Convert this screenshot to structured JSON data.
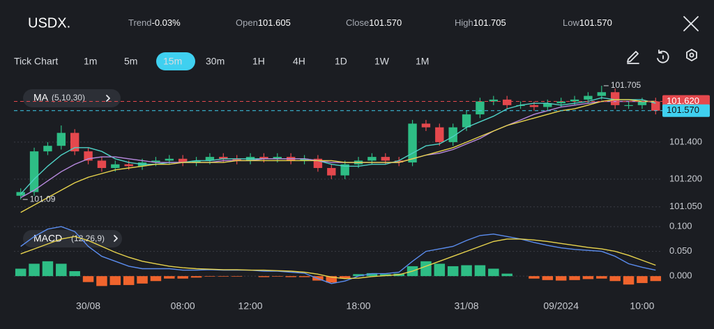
{
  "header": {
    "symbol": "USDX.",
    "stats": [
      {
        "label": "Trend",
        "value": "-0.03%"
      },
      {
        "label": "Open",
        "value": "101.605"
      },
      {
        "label": "Close",
        "value": "101.570"
      },
      {
        "label": "High",
        "value": "101.705"
      },
      {
        "label": "Low",
        "value": "101.570"
      }
    ]
  },
  "timeframes": [
    "Tick Chart",
    "1m",
    "5m",
    "15m",
    "30m",
    "1H",
    "4H",
    "1D",
    "1W",
    "1M"
  ],
  "active_timeframe": 3,
  "chart_data": [
    {
      "type": "candlestick",
      "indicator": "MA",
      "indicator_params": "(5,10,30)",
      "categories": [
        null,
        null,
        null,
        null,
        null,
        "30/08",
        null,
        null,
        null,
        null,
        null,
        null,
        "08:00",
        null,
        null,
        null,
        null,
        "12:00",
        null,
        null,
        null,
        null,
        null,
        null,
        null,
        "18:00",
        null,
        null,
        null,
        null,
        null,
        null,
        null,
        "31/08",
        null,
        null,
        null,
        null,
        null,
        null,
        "09/2024",
        null,
        null,
        null,
        null,
        null,
        "10:00",
        null
      ],
      "open": [
        101.11,
        101.13,
        101.35,
        101.38,
        101.45,
        101.35,
        101.3,
        101.26,
        101.28,
        101.27,
        101.29,
        101.3,
        101.31,
        101.29,
        101.3,
        101.32,
        101.31,
        101.3,
        101.32,
        101.31,
        101.32,
        101.3,
        101.31,
        101.26,
        101.22,
        101.28,
        101.3,
        101.32,
        101.3,
        101.29,
        101.5,
        101.48,
        101.4,
        101.48,
        101.55,
        101.62,
        101.63,
        101.6,
        101.6,
        101.59,
        101.61,
        101.62,
        101.63,
        101.65,
        101.67,
        101.6,
        101.6,
        101.62
      ],
      "high": [
        101.15,
        101.37,
        101.4,
        101.49,
        101.47,
        101.37,
        101.32,
        101.3,
        101.3,
        101.31,
        101.32,
        101.33,
        101.33,
        101.32,
        101.34,
        101.34,
        101.33,
        101.34,
        101.34,
        101.34,
        101.34,
        101.33,
        101.33,
        101.28,
        101.3,
        101.32,
        101.34,
        101.34,
        101.32,
        101.52,
        101.52,
        101.5,
        101.5,
        101.57,
        101.64,
        101.65,
        101.65,
        101.62,
        101.62,
        101.63,
        101.64,
        101.65,
        101.67,
        101.705,
        101.69,
        101.62,
        101.64,
        101.64
      ],
      "low": [
        101.09,
        101.11,
        101.33,
        101.36,
        101.33,
        101.28,
        101.24,
        101.24,
        101.25,
        101.25,
        101.27,
        101.28,
        101.27,
        101.27,
        101.28,
        101.29,
        101.28,
        101.28,
        101.29,
        101.29,
        101.28,
        101.28,
        101.24,
        101.2,
        101.2,
        101.26,
        101.28,
        101.28,
        101.27,
        101.27,
        101.46,
        101.38,
        101.38,
        101.46,
        101.53,
        101.6,
        101.58,
        101.58,
        101.57,
        101.57,
        101.59,
        101.6,
        101.61,
        101.63,
        101.58,
        101.58,
        101.58,
        101.55
      ],
      "close": [
        101.13,
        101.35,
        101.38,
        101.45,
        101.35,
        101.3,
        101.26,
        101.28,
        101.27,
        101.29,
        101.3,
        101.31,
        101.29,
        101.3,
        101.32,
        101.31,
        101.3,
        101.32,
        101.31,
        101.32,
        101.3,
        101.31,
        101.26,
        101.22,
        101.28,
        101.3,
        101.32,
        101.3,
        101.29,
        101.5,
        101.48,
        101.4,
        101.48,
        101.55,
        101.62,
        101.63,
        101.6,
        101.6,
        101.59,
        101.61,
        101.62,
        101.63,
        101.65,
        101.67,
        101.6,
        101.6,
        101.62,
        101.57
      ],
      "up_color": "#2ebd85",
      "down_color": "#e5484d",
      "ma": [
        {
          "color": "#4fd1c5",
          "values": [
            101.12,
            101.2,
            101.27,
            101.33,
            101.37,
            101.37,
            101.35,
            101.31,
            101.29,
            101.28,
            101.28,
            101.29,
            101.29,
            101.3,
            101.3,
            101.31,
            101.31,
            101.31,
            101.31,
            101.31,
            101.31,
            101.31,
            101.3,
            101.28,
            101.27,
            101.27,
            101.28,
            101.28,
            101.3,
            101.34,
            101.38,
            101.39,
            101.43,
            101.48,
            101.51,
            101.54,
            101.58,
            101.6,
            101.61,
            101.61,
            101.6,
            101.61,
            101.62,
            101.64,
            101.63,
            101.63,
            101.63,
            101.61
          ]
        },
        {
          "color": "#b98ae0",
          "values": [
            101.1,
            101.14,
            101.19,
            101.24,
            101.28,
            101.31,
            101.32,
            101.32,
            101.31,
            101.3,
            101.29,
            101.29,
            101.29,
            101.29,
            101.29,
            101.3,
            101.3,
            101.3,
            101.31,
            101.31,
            101.31,
            101.31,
            101.3,
            101.29,
            101.29,
            101.29,
            101.29,
            101.29,
            101.29,
            101.31,
            101.33,
            101.34,
            101.36,
            101.39,
            101.42,
            101.46,
            101.49,
            101.52,
            101.55,
            101.57,
            101.59,
            101.6,
            101.61,
            101.62,
            101.62,
            101.62,
            101.62,
            101.62
          ]
        },
        {
          "color": "#e8d44d",
          "values": [
            101.02,
            101.06,
            101.1,
            101.14,
            101.18,
            101.21,
            101.23,
            101.25,
            101.26,
            101.27,
            101.28,
            101.28,
            101.29,
            101.29,
            101.29,
            101.29,
            101.3,
            101.3,
            101.3,
            101.3,
            101.3,
            101.3,
            101.3,
            101.3,
            101.29,
            101.29,
            101.29,
            101.29,
            101.29,
            101.31,
            101.33,
            101.35,
            101.37,
            101.4,
            101.43,
            101.46,
            101.49,
            101.51,
            101.53,
            101.55,
            101.57,
            101.58,
            101.6,
            101.62,
            101.63,
            101.63,
            101.62,
            101.62
          ]
        }
      ],
      "ylim": [
        101.0,
        101.72
      ],
      "yticks": [
        {
          "value": 101.4,
          "label": "101.400"
        },
        {
          "value": 101.2,
          "label": "101.200"
        },
        {
          "value": 101.05,
          "label": "101.050"
        }
      ],
      "price_lines": [
        {
          "value": 101.62,
          "label": "101.620",
          "color": "#e5484d"
        },
        {
          "value": 101.57,
          "label": "101.570",
          "color": "#3fd0f0"
        }
      ],
      "high_annotation": 101.705,
      "low_annotation": 101.09,
      "grid": true
    },
    {
      "type": "macd",
      "indicator": "MACD",
      "indicator_params": "(12,26,9)",
      "series": [
        {
          "color": "#5b8def",
          "values": [
            0.06,
            0.08,
            0.095,
            0.1,
            0.09,
            0.06,
            0.04,
            0.03,
            0.02,
            0.015,
            0.015,
            0.015,
            0.012,
            0.012,
            0.013,
            0.012,
            0.012,
            0.012,
            0.01,
            0.01,
            0.008,
            0.006,
            -0.005,
            -0.015,
            -0.01,
            0.0,
            0.005,
            0.005,
            0.008,
            0.03,
            0.05,
            0.055,
            0.06,
            0.072,
            0.082,
            0.085,
            0.08,
            0.075,
            0.068,
            0.062,
            0.057,
            0.054,
            0.052,
            0.05,
            0.04,
            0.025,
            0.018,
            0.012
          ]
        },
        {
          "color": "#e8d44d",
          "values": [
            0.045,
            0.055,
            0.065,
            0.075,
            0.08,
            0.072,
            0.06,
            0.048,
            0.038,
            0.03,
            0.025,
            0.02,
            0.017,
            0.015,
            0.014,
            0.013,
            0.013,
            0.012,
            0.012,
            0.011,
            0.01,
            0.008,
            0.004,
            -0.002,
            -0.005,
            -0.004,
            -0.001,
            0.001,
            0.003,
            0.01,
            0.02,
            0.03,
            0.04,
            0.05,
            0.06,
            0.07,
            0.075,
            0.075,
            0.073,
            0.07,
            0.066,
            0.062,
            0.058,
            0.055,
            0.05,
            0.042,
            0.032,
            0.022
          ]
        }
      ],
      "histogram": [
        0.015,
        0.025,
        0.03,
        0.025,
        0.01,
        -0.012,
        -0.02,
        -0.018,
        -0.018,
        -0.015,
        -0.01,
        -0.005,
        -0.005,
        -0.003,
        -0.001,
        -0.001,
        -0.001,
        0,
        -0.002,
        -0.001,
        -0.002,
        -0.002,
        -0.009,
        -0.013,
        -0.005,
        0.004,
        0.006,
        0.004,
        0.005,
        0.02,
        0.03,
        0.025,
        0.02,
        0.022,
        0.022,
        0.015,
        0.005,
        0,
        -0.005,
        -0.008,
        -0.009,
        -0.008,
        -0.006,
        -0.005,
        -0.01,
        -0.017,
        -0.014,
        -0.01
      ],
      "up_color": "#2ebd85",
      "down_color": "#f0642d",
      "ylim": [
        -0.035,
        0.11
      ],
      "yticks": [
        {
          "value": 0.1,
          "label": "0.100"
        },
        {
          "value": 0.05,
          "label": "0.050"
        },
        {
          "value": 0,
          "label": "0.000"
        }
      ],
      "grid": true
    }
  ]
}
